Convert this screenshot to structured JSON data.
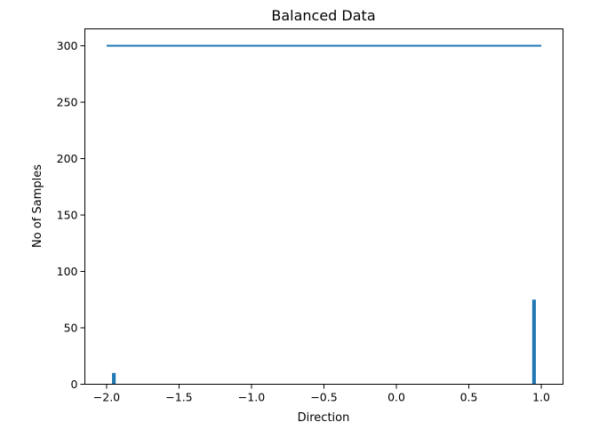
{
  "chart_data": {
    "type": "bar",
    "title": "Balanced Data",
    "xlabel": "Direction",
    "ylabel": "No of Samples",
    "xlim": [
      -2.15,
      1.15
    ],
    "ylim": [
      0,
      315
    ],
    "xticks": [
      -2.0,
      -1.5,
      -1.0,
      -0.5,
      0.0,
      0.5,
      1.0
    ],
    "xtick_labels": [
      "−2.0",
      "−1.5",
      "−1.0",
      "−0.5",
      "0.0",
      "0.5",
      "1.0"
    ],
    "yticks": [
      0,
      50,
      100,
      150,
      200,
      250,
      300
    ],
    "ytick_labels": [
      "0",
      "50",
      "100",
      "150",
      "200",
      "250",
      "300"
    ],
    "grid": false,
    "bar_color": "#1f77b4",
    "bar_width": 0.025,
    "bars": [
      {
        "x": -1.95,
        "value": 10
      },
      {
        "x": 0.95,
        "value": 75
      }
    ],
    "line": {
      "color": "#1f77b4",
      "x": [
        -2.0,
        1.0
      ],
      "y": [
        300,
        300
      ]
    }
  }
}
